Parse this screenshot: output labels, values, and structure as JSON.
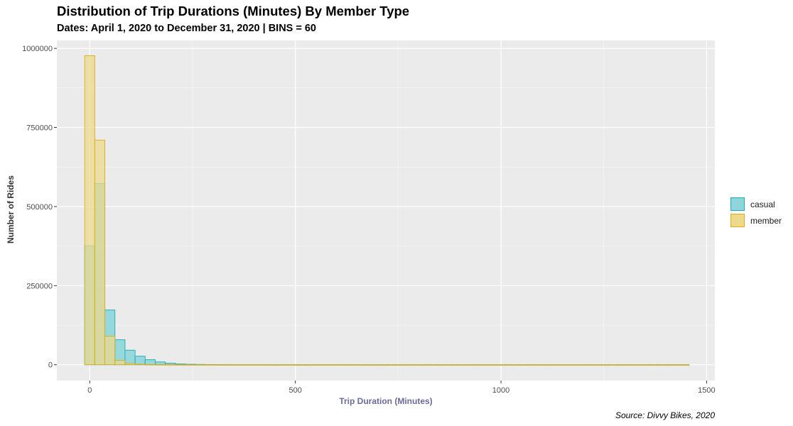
{
  "chart_data": {
    "type": "histogram",
    "title": "Distribution of Trip Durations (Minutes) By Member Type",
    "subtitle": "Dates: April 1, 2020 to December 31, 2020 | BINS = 60",
    "xlabel": "Trip Duration (Minutes)",
    "ylabel": "Number of Rides",
    "caption": "Source: Divvy Bikes, 2020",
    "xlim": [
      -80,
      1520
    ],
    "ylim": [
      -50000,
      1025000
    ],
    "x_ticks": [
      0,
      500,
      1000,
      1500
    ],
    "x_tick_labels": [
      "0",
      "500",
      "1000",
      "1500"
    ],
    "y_ticks": [
      0,
      250000,
      500000,
      750000,
      1000000
    ],
    "y_tick_labels": [
      "0",
      "250000",
      "500000",
      "750000",
      "1000000"
    ],
    "bin_width": 24.5,
    "bin_start": -12.25,
    "grid": true,
    "legend_position": "right",
    "series": [
      {
        "name": "casual",
        "fill": "#8fd6db",
        "stroke": "#1fa9b5",
        "values": [
          376000,
          573000,
          173000,
          79000,
          46000,
          27000,
          16000,
          9000,
          5000,
          2500,
          1500,
          1000,
          600,
          400,
          300,
          200,
          150,
          120,
          100,
          90,
          80,
          70,
          60,
          55,
          50,
          45,
          40,
          35,
          30,
          30,
          28,
          26,
          24,
          22,
          20,
          18,
          16,
          15,
          14,
          13,
          12,
          11,
          10,
          9,
          8,
          8,
          7,
          7,
          6,
          6,
          5,
          5,
          5,
          4,
          4,
          4,
          3,
          3,
          3,
          3
        ]
      },
      {
        "name": "member",
        "fill": "#ecd98c",
        "stroke": "#d8ad18",
        "values": [
          977000,
          710000,
          90000,
          14000,
          4000,
          1500,
          700,
          400,
          250,
          150,
          100,
          80,
          60,
          50,
          40,
          35,
          30,
          25,
          20,
          18,
          16,
          14,
          12,
          10,
          9,
          8,
          7,
          6,
          5,
          5,
          4,
          4,
          4,
          3,
          3,
          3,
          3,
          2,
          2,
          2,
          2,
          2,
          2,
          2,
          2,
          2,
          2,
          1,
          1,
          1,
          1,
          1,
          1,
          1,
          1,
          1,
          1,
          1,
          1,
          1
        ]
      }
    ]
  }
}
